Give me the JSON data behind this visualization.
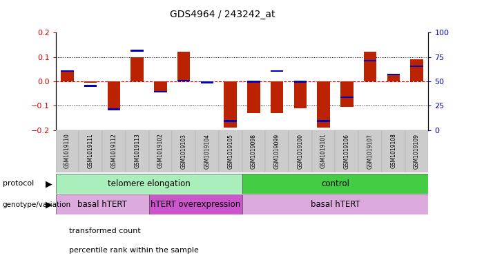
{
  "title": "GDS4964 / 243242_at",
  "samples": [
    "GSM1019110",
    "GSM1019111",
    "GSM1019112",
    "GSM1019113",
    "GSM1019102",
    "GSM1019103",
    "GSM1019104",
    "GSM1019105",
    "GSM1019098",
    "GSM1019099",
    "GSM1019100",
    "GSM1019101",
    "GSM1019106",
    "GSM1019107",
    "GSM1019108",
    "GSM1019109"
  ],
  "red_values": [
    0.04,
    -0.005,
    -0.12,
    0.1,
    -0.04,
    0.12,
    -0.005,
    -0.19,
    -0.13,
    -0.13,
    -0.11,
    -0.19,
    -0.105,
    0.12,
    0.03,
    0.09
  ],
  "blue_values": [
    0.042,
    -0.018,
    -0.115,
    0.125,
    -0.042,
    0.002,
    -0.005,
    -0.163,
    -0.002,
    0.042,
    -0.002,
    -0.163,
    -0.065,
    0.085,
    0.028,
    0.062
  ],
  "ylim": [
    -0.2,
    0.2
  ],
  "yticks_left": [
    -0.2,
    -0.1,
    0.0,
    0.1,
    0.2
  ],
  "yticks_right": [
    0,
    25,
    50,
    75,
    100
  ],
  "zero_line_color": "#cc0000",
  "bar_color_red": "#bb2200",
  "bar_color_blue": "#0000bb",
  "dotted_line_color": "#000000",
  "protocol_groups": [
    {
      "label": "telomere elongation",
      "start": 0,
      "end": 7,
      "color": "#aaeebb"
    },
    {
      "label": "control",
      "start": 8,
      "end": 15,
      "color": "#44cc44"
    }
  ],
  "genotype_groups": [
    {
      "label": "basal hTERT",
      "start": 0,
      "end": 3,
      "color": "#ddaadd"
    },
    {
      "label": "hTERT overexpression",
      "start": 4,
      "end": 7,
      "color": "#cc55cc"
    },
    {
      "label": "basal hTERT",
      "start": 8,
      "end": 15,
      "color": "#ddaadd"
    }
  ],
  "legend_items": [
    {
      "color": "#bb2200",
      "label": "transformed count"
    },
    {
      "color": "#0000bb",
      "label": "percentile rank within the sample"
    }
  ],
  "background_color": "#ffffff",
  "tick_label_color_left": "#cc0000",
  "tick_label_color_right": "#0000cc",
  "bar_width": 0.55,
  "blue_bar_height": 0.007
}
